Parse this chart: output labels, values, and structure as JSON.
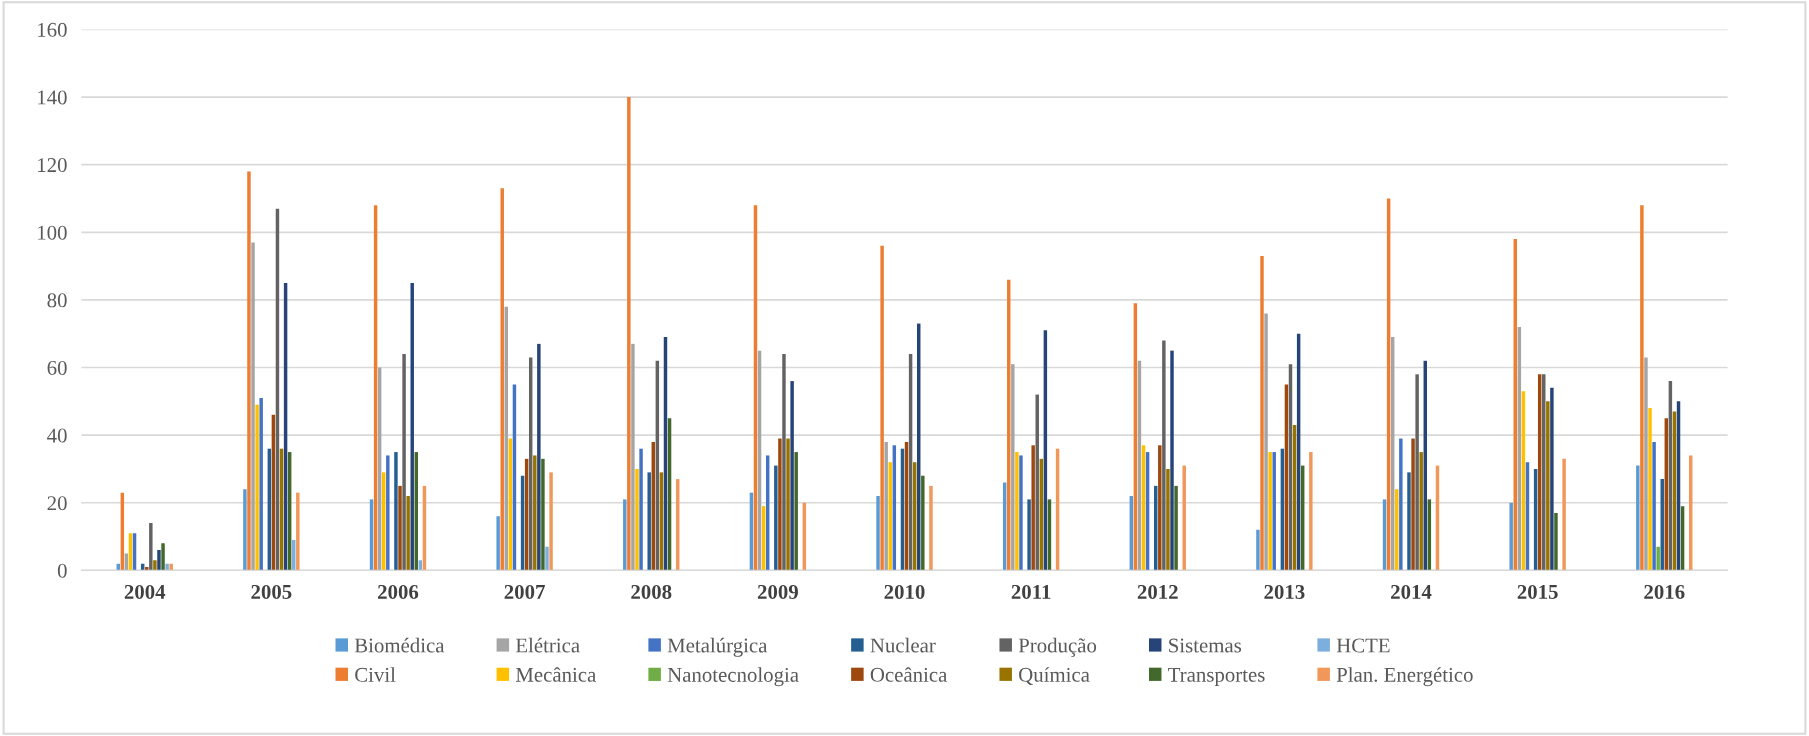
{
  "chart_data": {
    "type": "bar",
    "categories": [
      "2004",
      "2005",
      "2006",
      "2007",
      "2008",
      "2009",
      "2010",
      "2011",
      "2012",
      "2013",
      "2014",
      "2015",
      "2016"
    ],
    "series": [
      {
        "name": "Biomédica",
        "color": "#5b9bd5",
        "values": [
          2,
          24,
          21,
          16,
          21,
          23,
          22,
          26,
          22,
          12,
          21,
          20,
          31
        ]
      },
      {
        "name": "Civil",
        "color": "#ed7d31",
        "values": [
          23,
          118,
          108,
          113,
          140,
          108,
          96,
          86,
          79,
          93,
          110,
          98,
          108
        ]
      },
      {
        "name": "Elétrica",
        "color": "#a5a5a5",
        "values": [
          5,
          97,
          60,
          78,
          67,
          65,
          38,
          61,
          62,
          76,
          69,
          72,
          63
        ]
      },
      {
        "name": "Mecânica",
        "color": "#ffc000",
        "values": [
          11,
          49,
          29,
          39,
          30,
          19,
          32,
          35,
          37,
          35,
          24,
          53,
          48
        ]
      },
      {
        "name": "Metalúrgica",
        "color": "#4472c4",
        "values": [
          11,
          51,
          34,
          55,
          36,
          34,
          37,
          34,
          35,
          35,
          39,
          32,
          38
        ]
      },
      {
        "name": "Nanotecnologia",
        "color": "#70ad47",
        "values": [
          0,
          0,
          0,
          0,
          0,
          0,
          0,
          0,
          0,
          0,
          0,
          0,
          7
        ]
      },
      {
        "name": "Nuclear",
        "color": "#255e91",
        "values": [
          2,
          36,
          35,
          28,
          29,
          31,
          36,
          21,
          25,
          36,
          29,
          30,
          27
        ]
      },
      {
        "name": "Oceânica",
        "color": "#9e480e",
        "values": [
          1,
          46,
          25,
          33,
          38,
          39,
          38,
          37,
          37,
          55,
          39,
          58,
          45
        ]
      },
      {
        "name": "Produção",
        "color": "#636363",
        "values": [
          14,
          107,
          64,
          63,
          62,
          64,
          64,
          52,
          68,
          61,
          58,
          58,
          56
        ]
      },
      {
        "name": "Química",
        "color": "#997300",
        "values": [
          3,
          36,
          22,
          34,
          29,
          39,
          32,
          33,
          30,
          43,
          35,
          50,
          47
        ]
      },
      {
        "name": "Sistemas",
        "color": "#264478",
        "values": [
          6,
          85,
          85,
          67,
          69,
          56,
          73,
          71,
          65,
          70,
          62,
          54,
          50
        ]
      },
      {
        "name": "Transportes",
        "color": "#43682b",
        "values": [
          8,
          35,
          35,
          33,
          45,
          35,
          28,
          21,
          25,
          31,
          21,
          17,
          19
        ]
      },
      {
        "name": "HCTE",
        "color": "#7cafdd",
        "values": [
          2,
          9,
          3,
          7,
          0,
          0,
          0,
          0,
          0,
          0,
          0,
          0,
          0
        ]
      },
      {
        "name": "Plan. Energético",
        "color": "#f1975a",
        "values": [
          2,
          23,
          25,
          29,
          27,
          20,
          25,
          36,
          31,
          35,
          31,
          33,
          34
        ]
      }
    ],
    "ylim": [
      0,
      160
    ],
    "yticks": [
      0,
      20,
      40,
      60,
      80,
      100,
      120,
      140,
      160
    ],
    "grid": "y",
    "legend": "bottom"
  }
}
